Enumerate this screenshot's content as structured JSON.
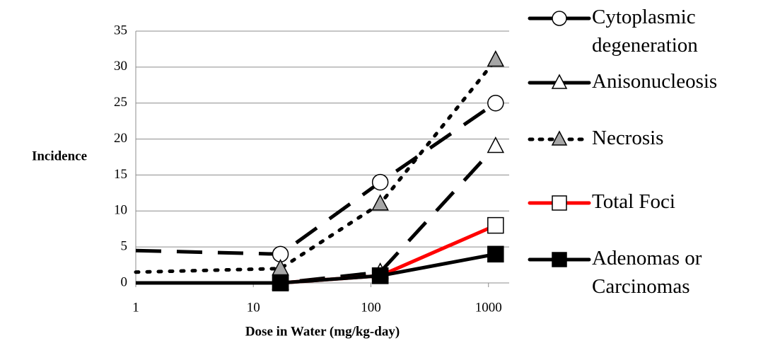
{
  "chart_data": {
    "type": "line",
    "xlabel": "Dose in Water (mg/kg-day)",
    "ylabel": "Incidence",
    "x": [
      1,
      17,
      120,
      1150
    ],
    "xscale": "log",
    "xlim": [
      1,
      1500
    ],
    "xticks": [
      1,
      10,
      100,
      1000
    ],
    "ylim": [
      0,
      35
    ],
    "yticks": [
      0,
      5,
      10,
      15,
      20,
      25,
      30,
      35
    ],
    "grid": true,
    "legend": "right",
    "series": [
      {
        "name": "Cytoplasmic degeneration",
        "color": "#000000",
        "dash": "long",
        "marker": "circle",
        "marker_fill": "#ffffff",
        "values": [
          4.5,
          4,
          14,
          25
        ]
      },
      {
        "name": "Anisonucleosis",
        "color": "#000000",
        "dash": "long",
        "marker": "triangle",
        "marker_fill": "#ffffff",
        "values": [
          0,
          0,
          1.5,
          19
        ]
      },
      {
        "name": "Necrosis",
        "color": "#000000",
        "dash": "dot",
        "marker": "triangle",
        "marker_fill": "#a6a6a6",
        "values": [
          1.5,
          2,
          11,
          31
        ]
      },
      {
        "name": "Total Foci",
        "color": "#ff0000",
        "dash": "solid",
        "marker": "square",
        "marker_fill": "#ffffff",
        "values": [
          0,
          0,
          1,
          8
        ]
      },
      {
        "name": "Adenomas or Carcinomas",
        "color": "#000000",
        "dash": "solid",
        "marker": "square",
        "marker_fill": "#000000",
        "values": [
          0,
          0,
          1,
          4
        ]
      }
    ]
  }
}
